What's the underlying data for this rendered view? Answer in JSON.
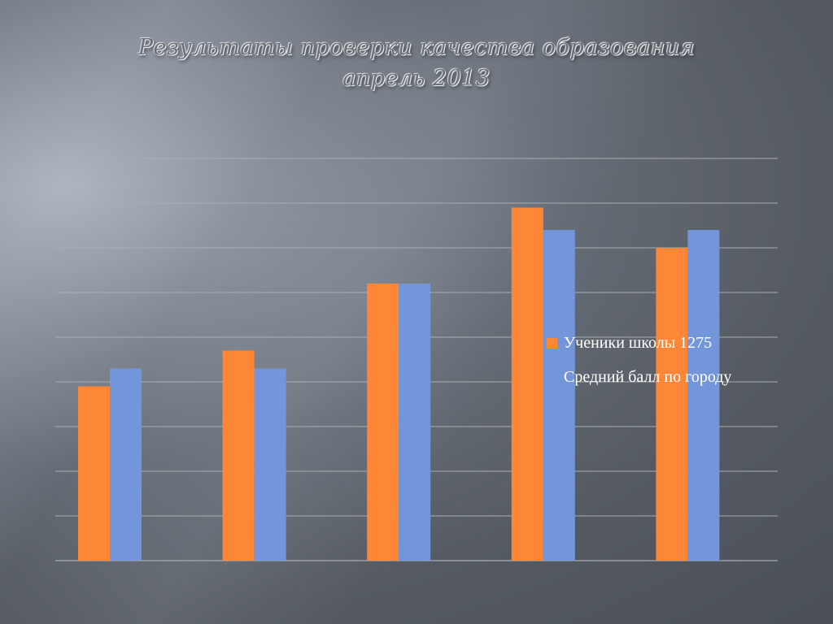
{
  "slide": {
    "title_line_1": "Результаты проверки качества образования",
    "title_line_2": "апрель 2013"
  },
  "colors": {
    "series_school": "#fd8637",
    "series_city": "#7396da",
    "grid": "#a9adb3"
  },
  "chart_data": {
    "type": "bar",
    "title": "Результаты проверки качества образования апрель 2013",
    "categories": [
      "",
      "",
      "",
      "",
      ""
    ],
    "series": [
      {
        "name": "Ученики школы  1275",
        "color": "#fd8637",
        "values": [
          3.9,
          4.7,
          6.2,
          7.9,
          7.0
        ]
      },
      {
        "name": "Средний балл по городу",
        "color": "#7396da",
        "values": [
          4.3,
          4.3,
          6.2,
          7.4,
          7.4
        ]
      }
    ],
    "ylim": [
      0,
      9
    ],
    "gridlines": 9,
    "grid": true,
    "legend": "right",
    "xlabel": "",
    "ylabel": ""
  }
}
